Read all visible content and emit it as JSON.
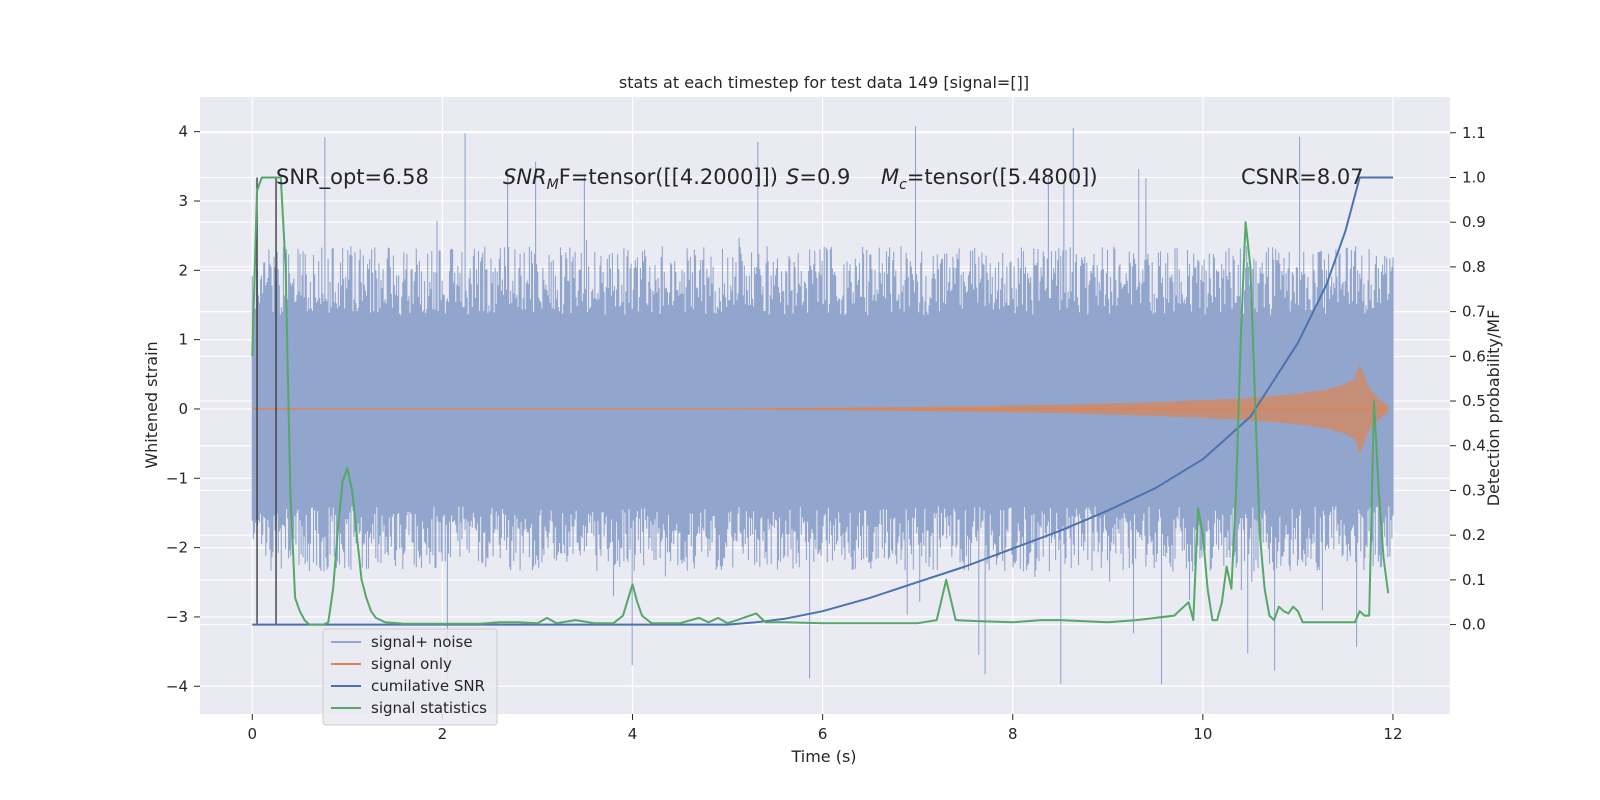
{
  "chart_data": {
    "type": "line",
    "title": "stats at each timestep for test data 149 [signal=[]]",
    "xlabel": "Time (s)",
    "ylabel": "Whitened strain",
    "ylabel_right": "Detection probability/MF",
    "xlim": [
      -0.55,
      12.6
    ],
    "ylim": [
      -4.4,
      4.5
    ],
    "ylim_right": [
      -0.2,
      1.18
    ],
    "x_ticks": [
      0,
      2,
      4,
      6,
      8,
      10,
      12
    ],
    "x_tick_labels": [
      "0",
      "2",
      "4",
      "6",
      "8",
      "10",
      "12"
    ],
    "y_ticks": [
      -4,
      -3,
      -2,
      -1,
      0,
      1,
      2,
      3,
      4
    ],
    "y_tick_labels": [
      "−4",
      "−3",
      "−2",
      "−1",
      "0",
      "1",
      "2",
      "3",
      "4"
    ],
    "y_right_ticks": [
      0.0,
      0.1,
      0.2,
      0.3,
      0.4,
      0.5,
      0.6,
      0.7,
      0.8,
      0.9,
      1.0,
      1.1
    ],
    "y_right_tick_labels": [
      "0.0",
      "0.1",
      "0.2",
      "0.3",
      "0.4",
      "0.5",
      "0.6",
      "0.7",
      "0.8",
      "0.9",
      "1.0",
      "1.1"
    ],
    "grid": true,
    "legend_position": "lower-left",
    "annotations": {
      "snr_opt": "SNR_opt=6.58",
      "snr_mf_prefix": "SNR",
      "snr_mf_sub": "M",
      "snr_mf_rest": "F=tensor([[4.2000]])",
      "s_var": "S",
      "s_rest": "=0.9",
      "mc_var": "M",
      "mc_sub": "c",
      "mc_rest": "=tensor([5.4800])",
      "csnr": "CSNR=8.07"
    },
    "series": [
      {
        "name": "signal+ noise",
        "color": "#92a6cd",
        "kind": "noise band",
        "x_range": [
          0,
          12
        ],
        "core_band": [
          -1.4,
          1.35
        ],
        "typical_band": [
          -2.3,
          2.3
        ],
        "extremes": [
          -4.0,
          4.1
        ]
      },
      {
        "name": "signal only",
        "color": "#dd8452",
        "kind": "chirp envelope",
        "x": [
          0,
          3,
          5.5,
          7,
          8.5,
          9.5,
          10,
          10.5,
          11,
          11.3,
          11.5,
          11.6,
          11.65,
          11.75,
          11.85,
          11.95
        ],
        "amplitude": [
          0.0,
          0.0,
          0.01,
          0.03,
          0.06,
          0.1,
          0.13,
          0.16,
          0.22,
          0.28,
          0.36,
          0.44,
          0.65,
          0.3,
          0.15,
          0.05
        ]
      },
      {
        "name": "cumilative SNR",
        "color": "#4c72b0",
        "axis": "right",
        "x": [
          0,
          0.5,
          1,
          2,
          3,
          4,
          5,
          5.3,
          5.6,
          6,
          6.5,
          7,
          7.5,
          8,
          8.5,
          9,
          9.5,
          10,
          10.5,
          11,
          11.3,
          11.5,
          11.65,
          12
        ],
        "y": [
          0.0,
          0.0,
          0.0,
          0.0,
          0.0,
          0.0,
          0.0,
          0.005,
          0.013,
          0.03,
          0.06,
          0.095,
          0.13,
          0.17,
          0.21,
          0.255,
          0.305,
          0.37,
          0.465,
          0.63,
          0.76,
          0.88,
          1.0,
          1.0
        ]
      },
      {
        "name": "signal statistics",
        "color": "#55a868",
        "axis": "right",
        "x": [
          0.0,
          0.05,
          0.1,
          0.15,
          0.2,
          0.25,
          0.3,
          0.35,
          0.4,
          0.45,
          0.5,
          0.55,
          0.6,
          0.65,
          0.7,
          0.75,
          0.8,
          0.85,
          0.9,
          0.95,
          1.0,
          1.05,
          1.1,
          1.15,
          1.2,
          1.25,
          1.3,
          1.4,
          1.6,
          2.0,
          2.4,
          2.6,
          2.8,
          3.0,
          3.1,
          3.2,
          3.4,
          3.6,
          3.8,
          3.9,
          4.0,
          4.05,
          4.1,
          4.2,
          4.5,
          4.7,
          4.8,
          4.9,
          5.0,
          5.1,
          5.3,
          5.4,
          5.6,
          6.0,
          6.5,
          7.0,
          7.2,
          7.3,
          7.4,
          7.6,
          8.0,
          8.3,
          8.5,
          9.0,
          9.3,
          9.5,
          9.7,
          9.85,
          9.9,
          9.95,
          10.0,
          10.05,
          10.1,
          10.15,
          10.2,
          10.25,
          10.3,
          10.35,
          10.4,
          10.45,
          10.5,
          10.55,
          10.6,
          10.65,
          10.7,
          10.75,
          10.8,
          10.85,
          10.9,
          10.95,
          11.0,
          11.05,
          11.1,
          11.2,
          11.3,
          11.5,
          11.6,
          11.65,
          11.7,
          11.75,
          11.8,
          11.85,
          11.9,
          11.95
        ],
        "y": [
          0.6,
          0.97,
          1.0,
          1.0,
          1.0,
          1.0,
          1.0,
          0.8,
          0.3,
          0.06,
          0.03,
          0.01,
          0.0,
          0.0,
          0.0,
          0.0,
          0.005,
          0.08,
          0.21,
          0.32,
          0.35,
          0.3,
          0.2,
          0.1,
          0.06,
          0.03,
          0.015,
          0.005,
          0.002,
          0.002,
          0.002,
          0.005,
          0.005,
          0.003,
          0.015,
          0.003,
          0.01,
          0.003,
          0.003,
          0.02,
          0.09,
          0.05,
          0.02,
          0.003,
          0.003,
          0.015,
          0.005,
          0.015,
          0.003,
          0.01,
          0.025,
          0.005,
          0.005,
          0.003,
          0.003,
          0.003,
          0.01,
          0.1,
          0.01,
          0.008,
          0.005,
          0.01,
          0.01,
          0.005,
          0.01,
          0.015,
          0.02,
          0.05,
          0.01,
          0.26,
          0.2,
          0.08,
          0.01,
          0.01,
          0.05,
          0.13,
          0.08,
          0.3,
          0.65,
          0.9,
          0.8,
          0.5,
          0.2,
          0.08,
          0.02,
          0.01,
          0.04,
          0.03,
          0.025,
          0.04,
          0.03,
          0.005,
          0.005,
          0.005,
          0.005,
          0.005,
          0.005,
          0.03,
          0.02,
          0.02,
          0.5,
          0.3,
          0.15,
          0.07
        ]
      }
    ],
    "vlines_x": [
      0.05,
      0.25
    ]
  }
}
